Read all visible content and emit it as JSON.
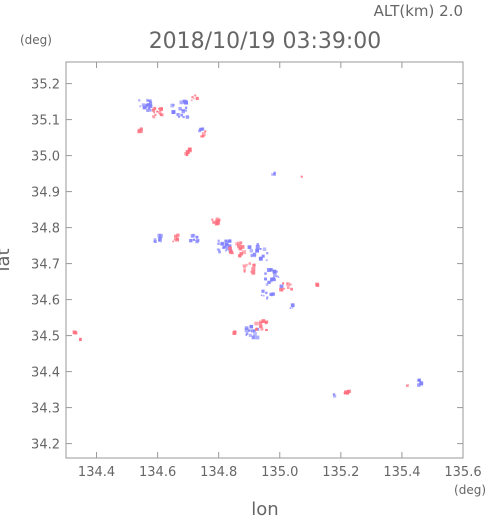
{
  "header": {
    "altitude_label": "ALT(km)  2.0",
    "timestamp": "2018/10/19 03:39:00"
  },
  "chart_data": {
    "type": "scatter",
    "title": "2018/10/19 03:39:00",
    "xlabel": "lon",
    "ylabel": "lat",
    "x_unit": "(deg)",
    "y_unit": "(deg)",
    "xlim": [
      134.3,
      135.6
    ],
    "ylim": [
      34.16,
      35.26
    ],
    "x_ticks": [
      134.4,
      134.6,
      134.8,
      135.0,
      135.2,
      135.4,
      135.6
    ],
    "x_tick_labels": [
      "134.4",
      "134.6",
      "134.8",
      "135.0",
      "135.2",
      "135.4",
      "135.6"
    ],
    "y_ticks": [
      34.2,
      34.3,
      34.4,
      34.5,
      34.6,
      34.7,
      34.8,
      34.9,
      35.0,
      35.1,
      35.2
    ],
    "y_tick_labels": [
      "34.2",
      "34.3",
      "34.4",
      "34.5",
      "34.6",
      "34.7",
      "34.8",
      "34.9",
      "35.0",
      "35.1",
      "35.2"
    ],
    "grid": false,
    "colors": {
      "positive": "#ff6f7f",
      "negative": "#7f7fff",
      "axis": "#999999",
      "text": "#666666"
    },
    "clusters": [
      {
        "lon": 134.56,
        "lat": 35.14,
        "polarity": "negative",
        "spread": 0.02,
        "count": 22
      },
      {
        "lon": 134.6,
        "lat": 35.12,
        "polarity": "positive",
        "spread": 0.015,
        "count": 12
      },
      {
        "lon": 134.67,
        "lat": 35.13,
        "polarity": "negative",
        "spread": 0.03,
        "count": 18
      },
      {
        "lon": 134.72,
        "lat": 35.16,
        "polarity": "positive",
        "spread": 0.01,
        "count": 6
      },
      {
        "lon": 134.75,
        "lat": 35.06,
        "polarity": "positive",
        "spread": 0.01,
        "count": 6
      },
      {
        "lon": 134.74,
        "lat": 35.07,
        "polarity": "negative",
        "spread": 0.008,
        "count": 4
      },
      {
        "lon": 134.7,
        "lat": 35.01,
        "polarity": "positive",
        "spread": 0.012,
        "count": 5
      },
      {
        "lon": 134.54,
        "lat": 35.07,
        "polarity": "positive",
        "spread": 0.008,
        "count": 4
      },
      {
        "lon": 134.98,
        "lat": 34.95,
        "polarity": "negative",
        "spread": 0.004,
        "count": 3
      },
      {
        "lon": 135.07,
        "lat": 34.94,
        "polarity": "positive",
        "spread": 0.003,
        "count": 2
      },
      {
        "lon": 134.79,
        "lat": 34.82,
        "polarity": "positive",
        "spread": 0.012,
        "count": 9
      },
      {
        "lon": 134.6,
        "lat": 34.77,
        "polarity": "negative",
        "spread": 0.012,
        "count": 8
      },
      {
        "lon": 134.66,
        "lat": 34.77,
        "polarity": "positive",
        "spread": 0.012,
        "count": 8
      },
      {
        "lon": 134.72,
        "lat": 34.77,
        "polarity": "negative",
        "spread": 0.012,
        "count": 7
      },
      {
        "lon": 134.82,
        "lat": 34.75,
        "polarity": "negative",
        "spread": 0.025,
        "count": 20
      },
      {
        "lon": 134.86,
        "lat": 34.74,
        "polarity": "positive",
        "spread": 0.025,
        "count": 16
      },
      {
        "lon": 134.93,
        "lat": 34.73,
        "polarity": "negative",
        "spread": 0.03,
        "count": 18
      },
      {
        "lon": 134.9,
        "lat": 34.69,
        "polarity": "positive",
        "spread": 0.02,
        "count": 10
      },
      {
        "lon": 134.98,
        "lat": 34.66,
        "polarity": "negative",
        "spread": 0.03,
        "count": 18
      },
      {
        "lon": 135.02,
        "lat": 34.64,
        "polarity": "positive",
        "spread": 0.02,
        "count": 10
      },
      {
        "lon": 134.96,
        "lat": 34.61,
        "polarity": "negative",
        "spread": 0.02,
        "count": 10
      },
      {
        "lon": 135.12,
        "lat": 34.64,
        "polarity": "positive",
        "spread": 0.006,
        "count": 3
      },
      {
        "lon": 135.04,
        "lat": 34.58,
        "polarity": "negative",
        "spread": 0.006,
        "count": 3
      },
      {
        "lon": 134.91,
        "lat": 34.51,
        "polarity": "negative",
        "spread": 0.02,
        "count": 14
      },
      {
        "lon": 134.94,
        "lat": 34.53,
        "polarity": "positive",
        "spread": 0.02,
        "count": 12
      },
      {
        "lon": 134.85,
        "lat": 34.51,
        "polarity": "positive",
        "spread": 0.006,
        "count": 3
      },
      {
        "lon": 134.33,
        "lat": 34.51,
        "polarity": "positive",
        "spread": 0.004,
        "count": 3
      },
      {
        "lon": 134.35,
        "lat": 34.49,
        "polarity": "positive",
        "spread": 0.003,
        "count": 2
      },
      {
        "lon": 135.46,
        "lat": 34.37,
        "polarity": "negative",
        "spread": 0.01,
        "count": 7
      },
      {
        "lon": 135.42,
        "lat": 34.36,
        "polarity": "positive",
        "spread": 0.004,
        "count": 2
      },
      {
        "lon": 135.22,
        "lat": 34.34,
        "polarity": "positive",
        "spread": 0.008,
        "count": 5
      },
      {
        "lon": 135.18,
        "lat": 34.335,
        "polarity": "negative",
        "spread": 0.004,
        "count": 2
      }
    ]
  }
}
